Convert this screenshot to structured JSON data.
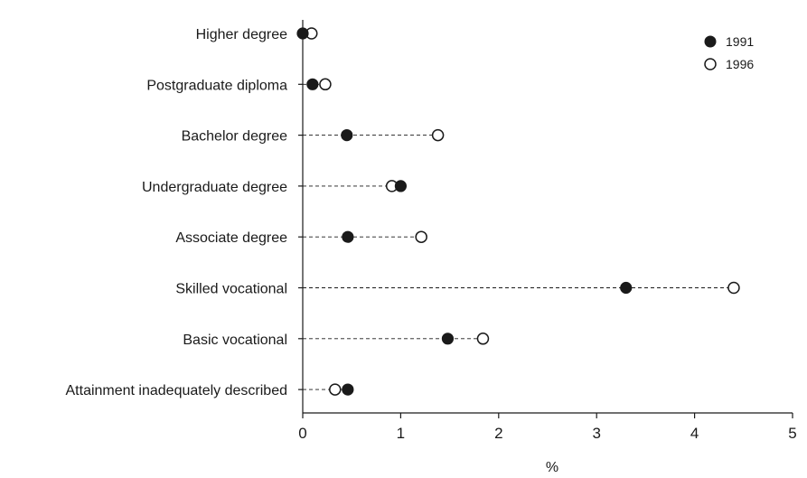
{
  "chart_data": {
    "type": "dot",
    "categories": [
      "Higher degree",
      "Postgraduate diploma",
      "Bachelor degree",
      "Undergraduate degree",
      "Associate degree",
      "Skilled vocational",
      "Basic vocational",
      "Attainment inadequately described"
    ],
    "series": [
      {
        "name": "1991",
        "marker": "filled-circle",
        "values": [
          0.0,
          0.1,
          0.45,
          1.0,
          0.46,
          3.3,
          1.48,
          0.46
        ]
      },
      {
        "name": "1996",
        "marker": "open-circle",
        "values": [
          0.09,
          0.23,
          1.38,
          0.91,
          1.21,
          4.4,
          1.84,
          0.33
        ]
      }
    ],
    "xlabel": "%",
    "xlim": [
      0,
      5
    ],
    "xticks": [
      0,
      1,
      2,
      3,
      4,
      5
    ],
    "grid": false,
    "connector": "dashed",
    "legend_position": "top-right",
    "colors": {
      "ink": "#1a1a1a",
      "background": "#ffffff"
    }
  }
}
